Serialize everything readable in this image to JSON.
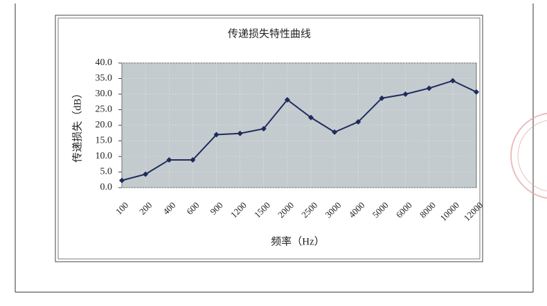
{
  "chart_data": {
    "type": "line",
    "title": "传递损失特性曲线",
    "x_label": "频率（Hz）",
    "y_label": "传递损失（dB）",
    "categories": [
      "100",
      "200",
      "400",
      "600",
      "900",
      "1200",
      "1500",
      "2000",
      "2500",
      "3000",
      "4000",
      "5000",
      "6000",
      "8000",
      "10000",
      "12000"
    ],
    "series": [
      {
        "name": "传递损失",
        "color": "#1f2b5c",
        "values": [
          2.3,
          4.3,
          8.9,
          8.9,
          17.0,
          17.4,
          18.9,
          28.2,
          22.5,
          17.8,
          21.1,
          28.7,
          30.0,
          31.9,
          34.3,
          30.7
        ]
      }
    ],
    "ylim": [
      0,
      40
    ],
    "yticks": [
      {
        "value": 0,
        "label": "0.0"
      },
      {
        "value": 5,
        "label": "5.0"
      },
      {
        "value": 10,
        "label": "10.0"
      },
      {
        "value": 15,
        "label": "15.0"
      },
      {
        "value": 20,
        "label": "20.0"
      },
      {
        "value": 25,
        "label": "25.0"
      },
      {
        "value": 30,
        "label": "30.0"
      },
      {
        "value": 35,
        "label": "35.0"
      },
      {
        "value": 40,
        "label": "40.0"
      }
    ],
    "grid": true,
    "plot_background": "#c3cbcf"
  }
}
